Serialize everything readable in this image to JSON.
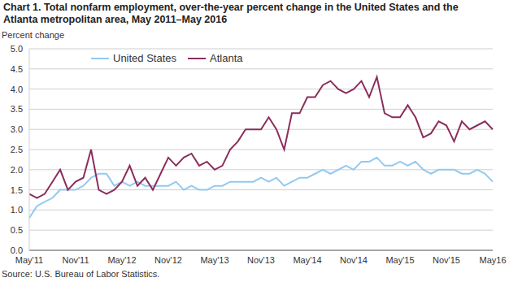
{
  "chart_data": {
    "type": "line",
    "title": "Chart 1. Total nonfarm employment, over-the-year percent change in the United States and the Atlanta metropolitan area, May 2011–May 2016",
    "y_label": "Percent change",
    "source": "Source: U.S. Bureau of Labor Statistics.",
    "categories": [
      "May'11",
      null,
      null,
      null,
      null,
      null,
      "Nov'11",
      null,
      null,
      null,
      null,
      null,
      "May'12",
      null,
      null,
      null,
      null,
      null,
      "Nov'12",
      null,
      null,
      null,
      null,
      null,
      "May'13",
      null,
      null,
      null,
      null,
      null,
      "Nov'13",
      null,
      null,
      null,
      null,
      null,
      "May'14",
      null,
      null,
      null,
      null,
      null,
      "Nov'14",
      null,
      null,
      null,
      null,
      null,
      "May'15",
      null,
      null,
      null,
      null,
      null,
      "Nov'15",
      null,
      null,
      null,
      null,
      null,
      "May16"
    ],
    "series": [
      {
        "name": "United States",
        "color": "#93c9ef",
        "values": [
          0.8,
          1.1,
          1.2,
          1.3,
          1.5,
          1.5,
          1.5,
          1.6,
          1.8,
          1.9,
          1.9,
          1.6,
          1.7,
          1.6,
          1.7,
          1.6,
          1.6,
          1.6,
          1.6,
          1.7,
          1.5,
          1.6,
          1.5,
          1.5,
          1.6,
          1.6,
          1.7,
          1.7,
          1.7,
          1.7,
          1.8,
          1.7,
          1.8,
          1.6,
          1.7,
          1.8,
          1.8,
          1.9,
          2.0,
          1.9,
          2.0,
          2.1,
          2.0,
          2.2,
          2.2,
          2.3,
          2.1,
          2.1,
          2.2,
          2.1,
          2.2,
          2.0,
          1.9,
          2.0,
          2.0,
          2.0,
          1.9,
          1.9,
          2.0,
          1.9,
          1.7
        ]
      },
      {
        "name": "Atlanta",
        "color": "#8b2d5c",
        "values": [
          1.4,
          1.3,
          1.4,
          1.7,
          2.0,
          1.5,
          1.7,
          1.8,
          2.5,
          1.5,
          1.4,
          1.5,
          1.7,
          2.1,
          1.6,
          1.8,
          1.5,
          1.9,
          2.3,
          2.1,
          2.3,
          2.4,
          2.1,
          2.2,
          2.0,
          2.1,
          2.5,
          2.7,
          3.0,
          3.0,
          3.0,
          3.3,
          3.0,
          2.5,
          3.4,
          3.4,
          3.8,
          3.8,
          4.1,
          4.2,
          4.0,
          3.9,
          4.0,
          4.2,
          3.8,
          4.3,
          3.4,
          3.3,
          3.3,
          3.6,
          3.3,
          2.8,
          2.9,
          3.2,
          3.1,
          2.7,
          3.2,
          3.0,
          3.1,
          3.2,
          3.0
        ]
      }
    ],
    "ylim": [
      0,
      5
    ],
    "yticks": [
      {
        "value": 0,
        "label": "0.0"
      },
      {
        "value": 0.5,
        "label": "0.5"
      },
      {
        "value": 1,
        "label": "1.0"
      },
      {
        "value": 1.5,
        "label": "1.5"
      },
      {
        "value": 2,
        "label": "2.0"
      },
      {
        "value": 2.5,
        "label": "2.5"
      },
      {
        "value": 3,
        "label": "3.0"
      },
      {
        "value": 3.5,
        "label": "3.5"
      },
      {
        "value": 4,
        "label": "4.0"
      },
      {
        "value": 4.5,
        "label": "4.5"
      },
      {
        "value": 5,
        "label": "5.0"
      }
    ],
    "grid": true,
    "legend": "upper left"
  }
}
